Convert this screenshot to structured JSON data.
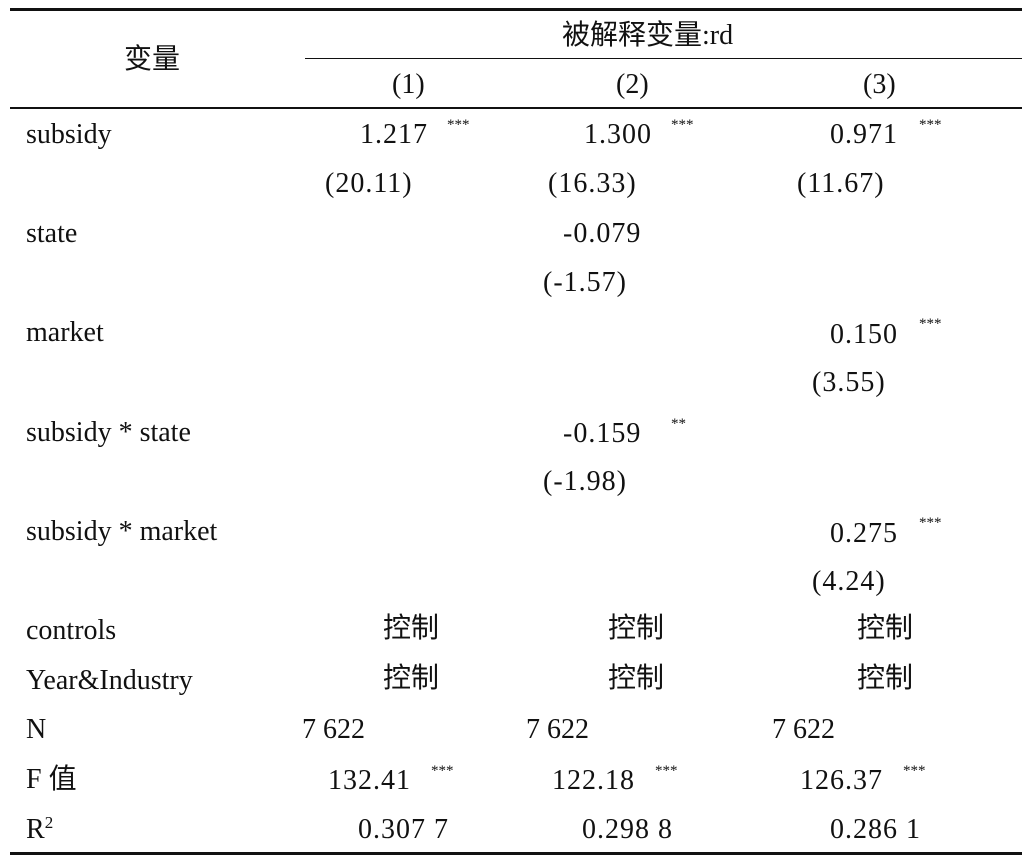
{
  "header": {
    "variable_label": "变量",
    "dependent_label": "被解释变量:rd",
    "columns": [
      "(1)",
      "(2)",
      "(3)"
    ]
  },
  "rows": {
    "subsidy": {
      "label": "subsidy",
      "coef": [
        "1.217",
        "1.300",
        "0.971"
      ],
      "stars": [
        "***",
        "***",
        "***"
      ],
      "t": [
        "(20.11)",
        "(16.33)",
        "(11.67)"
      ]
    },
    "state": {
      "label": "state",
      "coef": [
        "",
        "-0.079",
        ""
      ],
      "t": [
        "",
        "(-1.57)",
        ""
      ]
    },
    "market": {
      "label": "market",
      "coef": [
        "",
        "",
        "0.150"
      ],
      "stars": [
        "",
        "",
        "***"
      ],
      "t": [
        "",
        "",
        "(3.55)"
      ]
    },
    "subsidy_state": {
      "label": "subsidy * state",
      "coef": [
        "",
        "-0.159",
        ""
      ],
      "stars": [
        "",
        "**",
        ""
      ],
      "t": [
        "",
        "(-1.98)",
        ""
      ]
    },
    "subsidy_market": {
      "label": "subsidy * market",
      "coef": [
        "",
        "",
        "0.275"
      ],
      "stars": [
        "",
        "",
        "***"
      ],
      "t": [
        "",
        "",
        "(4.24)"
      ]
    },
    "controls": {
      "label": "controls",
      "values": [
        "控制",
        "控制",
        "控制"
      ]
    },
    "year_industry": {
      "label": "Year&Industry",
      "values": [
        "控制",
        "控制",
        "控制"
      ]
    },
    "n": {
      "label": "N",
      "values": [
        "7 622",
        "7 622",
        "7 622"
      ]
    },
    "f": {
      "label": "F 值",
      "values": [
        "132.41",
        "122.18",
        "126.37"
      ],
      "stars": [
        "***",
        "***",
        "***"
      ]
    },
    "r2": {
      "label_base": "R",
      "label_sup": "2",
      "values": [
        "0.307 7",
        "0.298 8",
        "0.286 1"
      ]
    }
  }
}
